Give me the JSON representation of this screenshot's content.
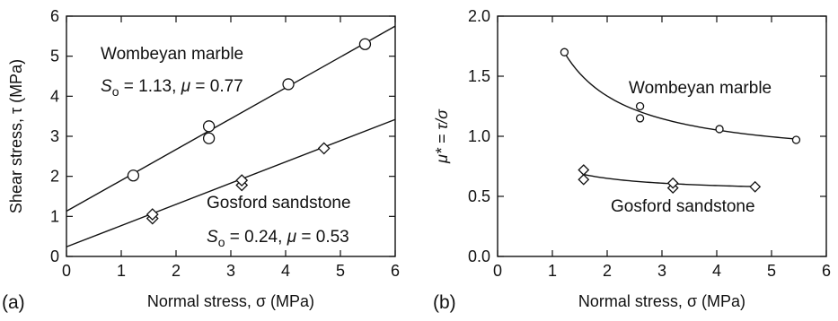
{
  "chart_data": [
    {
      "type": "scatter",
      "panel_label": "(a)",
      "xlabel": "Normal stress, σ (MPa)",
      "ylabel": "Shear stress, τ (MPa)",
      "xlim": [
        0,
        6
      ],
      "ylim": [
        0,
        6
      ],
      "xticks": [
        "0",
        "1",
        "2",
        "3",
        "4",
        "5",
        "6"
      ],
      "yticks": [
        "0",
        "1",
        "2",
        "3",
        "4",
        "5",
        "6"
      ],
      "grid": false,
      "series": [
        {
          "name": "Wombeyan marble",
          "marker": "circle",
          "points": [
            [
              1.22,
              2.02
            ],
            [
              2.6,
              2.95
            ],
            [
              2.6,
              3.25
            ],
            [
              4.05,
              4.3
            ],
            [
              5.45,
              5.3
            ]
          ],
          "fit": {
            "intercept": 1.13,
            "slope": 0.77
          },
          "annotation_name": "Wombeyan marble",
          "annotation_params": {
            "s_symbol": "S",
            "s_sub": "o",
            "s_value": " = 1.13, ",
            "mu_symbol": "μ",
            "mu_value": " = 0.77"
          }
        },
        {
          "name": "Gosford sandstone",
          "marker": "diamond",
          "points": [
            [
              1.57,
              0.95
            ],
            [
              1.57,
              1.05
            ],
            [
              3.2,
              1.78
            ],
            [
              3.2,
              1.9
            ],
            [
              4.7,
              2.7
            ]
          ],
          "fit": {
            "intercept": 0.24,
            "slope": 0.53
          },
          "annotation_name": "Gosford sandstone",
          "annotation_params": {
            "s_symbol": "S",
            "s_sub": "o",
            "s_value": " = 0.24, ",
            "mu_symbol": "μ",
            "mu_value": " = 0.53"
          }
        }
      ]
    },
    {
      "type": "scatter",
      "panel_label": "(b)",
      "xlabel": "Normal stress, σ (MPa)",
      "ylabel": "μ* =  τ/σ",
      "xlim": [
        0,
        6
      ],
      "ylim": [
        0,
        2
      ],
      "xticks": [
        "0",
        "1",
        "2",
        "3",
        "4",
        "5",
        "6"
      ],
      "yticks": [
        "0.0",
        "0.5",
        "1.0",
        "1.5",
        "2.0"
      ],
      "grid": false,
      "series": [
        {
          "name": "Wombeyan marble",
          "marker": "circle",
          "points": [
            [
              1.22,
              1.7
            ],
            [
              2.6,
              1.25
            ],
            [
              2.6,
              1.15
            ],
            [
              4.05,
              1.06
            ],
            [
              5.45,
              0.97
            ]
          ],
          "fit": {
            "a": 1.13,
            "b": 0.77
          },
          "annotation_name": "Wombeyan marble"
        },
        {
          "name": "Gosford sandstone",
          "marker": "diamond",
          "points": [
            [
              1.57,
              0.64
            ],
            [
              1.57,
              0.72
            ],
            [
              3.2,
              0.57
            ],
            [
              3.2,
              0.61
            ],
            [
              4.7,
              0.58
            ]
          ],
          "fit": {
            "a": 0.24,
            "b": 0.53
          },
          "annotation_name": "Gosford sandstone"
        }
      ]
    }
  ]
}
